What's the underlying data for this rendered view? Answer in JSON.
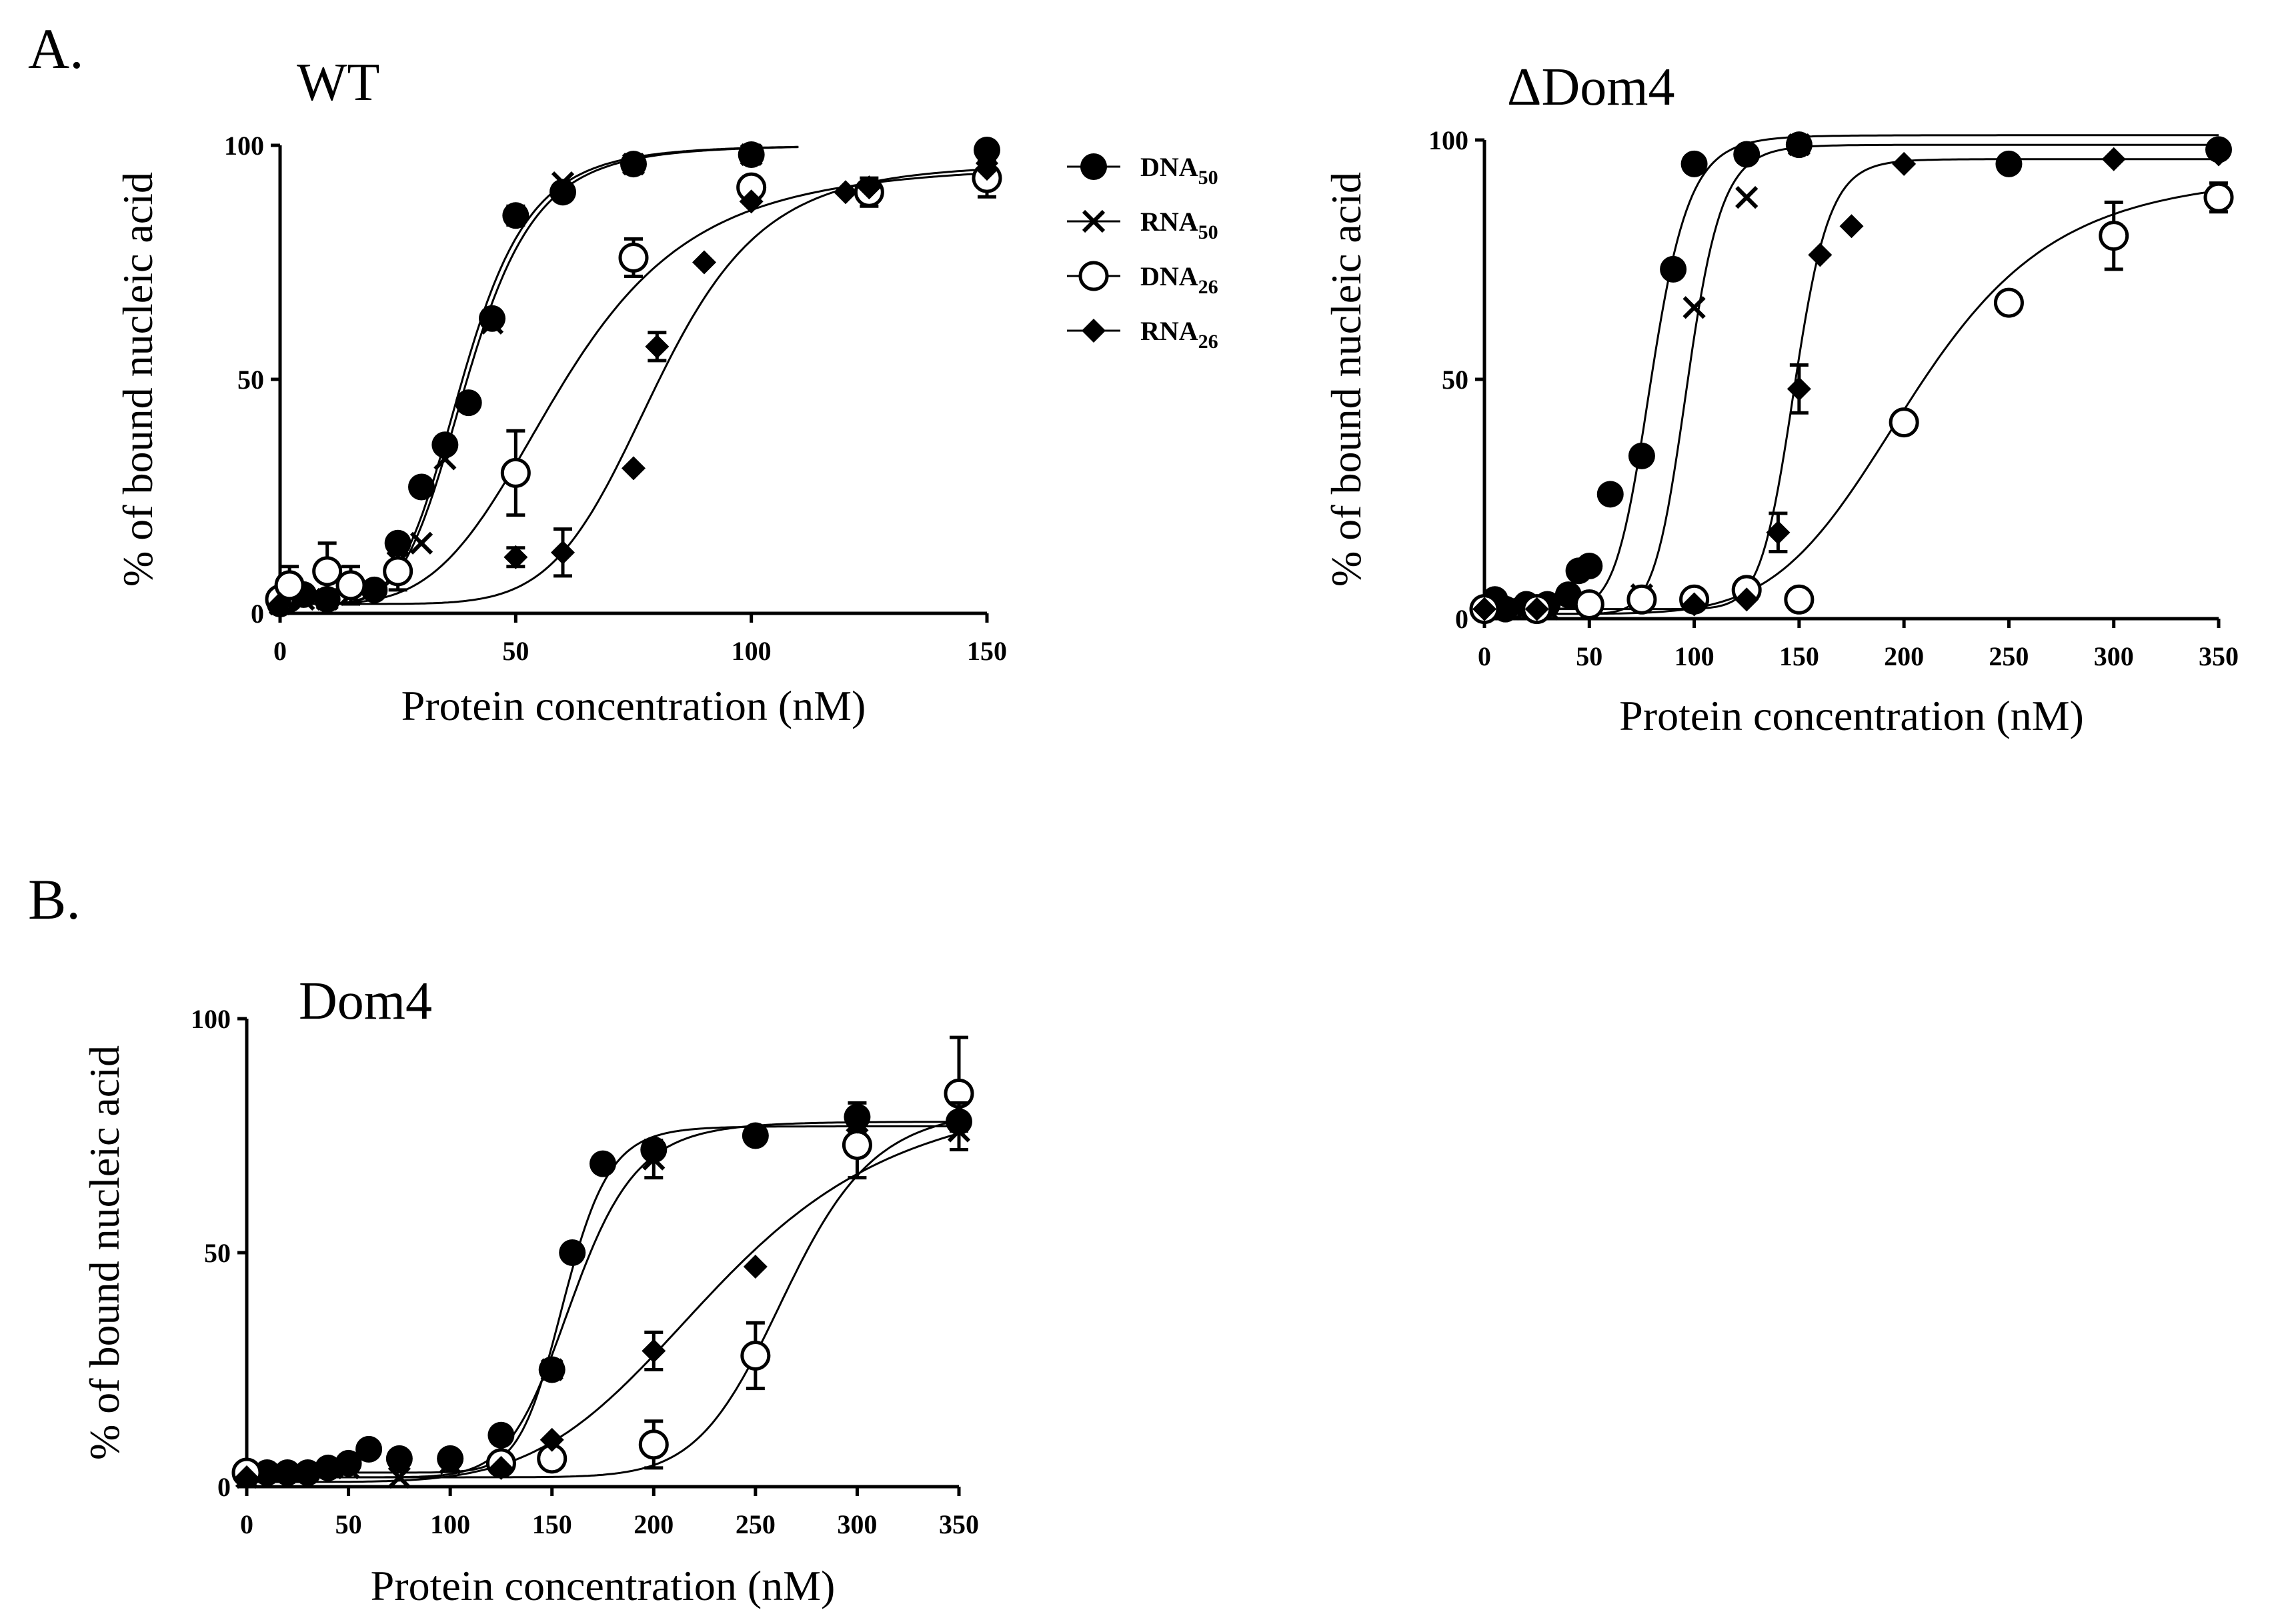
{
  "panel_labels": [
    "A.",
    "B."
  ],
  "legend": {
    "items": [
      {
        "base": "DNA",
        "sub": "50",
        "marker": "filled-circle"
      },
      {
        "base": "RNA",
        "sub": "50",
        "marker": "cross"
      },
      {
        "base": "DNA",
        "sub": "26",
        "marker": "open-circle"
      },
      {
        "base": "RNA",
        "sub": "26",
        "marker": "filled-diamond"
      }
    ]
  },
  "chart_data": [
    {
      "type": "scatter",
      "title": "WT",
      "xlabel": "Protein concentration (nM)",
      "ylabel": "% of bound nucleic acid",
      "xlim": [
        0,
        150
      ],
      "ylim": [
        0,
        100
      ],
      "xticks": [
        0,
        50,
        100,
        150
      ],
      "yticks": [
        0,
        50,
        100
      ],
      "series": [
        {
          "name": "DNA50",
          "marker": "filled-circle",
          "points": [
            [
              0,
              2
            ],
            [
              2,
              3
            ],
            [
              5,
              4
            ],
            [
              10,
              3
            ],
            [
              20,
              5
            ],
            [
              25,
              15
            ],
            [
              30,
              27
            ],
            [
              35,
              36
            ],
            [
              40,
              45
            ],
            [
              45,
              63
            ],
            [
              50,
              85
            ],
            [
              60,
              90
            ],
            [
              75,
              96
            ],
            [
              100,
              98
            ],
            [
              150,
              99
            ]
          ],
          "err": [
            0,
            0,
            0,
            0,
            0,
            0,
            0,
            0,
            0,
            0,
            2,
            0,
            0,
            0,
            0
          ],
          "fit": {
            "top": 100,
            "bottom": 2,
            "ec50": 39,
            "hill": 5.5,
            "xmax": 110
          }
        },
        {
          "name": "RNA50",
          "marker": "cross",
          "points": [
            [
              0,
              2
            ],
            [
              5,
              3
            ],
            [
              10,
              3
            ],
            [
              15,
              4
            ],
            [
              25,
              11
            ],
            [
              30,
              15
            ],
            [
              35,
              33
            ],
            [
              45,
              62
            ],
            [
              60,
              92
            ],
            [
              75,
              96
            ],
            [
              100,
              98
            ],
            [
              150,
              98
            ]
          ],
          "err": [
            0,
            0,
            0,
            0,
            0,
            0,
            0,
            0,
            0,
            0,
            0,
            0
          ],
          "fit": {
            "top": 100,
            "bottom": 2,
            "ec50": 40,
            "hill": 5.5,
            "xmax": 110
          }
        },
        {
          "name": "DNA26",
          "marker": "open-circle",
          "points": [
            [
              0,
              3
            ],
            [
              2,
              6
            ],
            [
              10,
              9
            ],
            [
              15,
              6
            ],
            [
              25,
              9
            ],
            [
              50,
              30
            ],
            [
              75,
              76
            ],
            [
              100,
              91
            ],
            [
              125,
              90
            ],
            [
              150,
              93
            ]
          ],
          "err": [
            0,
            4,
            6,
            4,
            4,
            9,
            4,
            0,
            3,
            4
          ],
          "fit": {
            "top": 96,
            "bottom": 2,
            "ec50": 60,
            "hill": 4.2,
            "xmax": 150
          }
        },
        {
          "name": "RNA26",
          "marker": "filled-diamond",
          "points": [
            [
              0,
              2
            ],
            [
              10,
              3
            ],
            [
              20,
              5
            ],
            [
              50,
              12
            ],
            [
              60,
              13
            ],
            [
              75,
              31
            ],
            [
              80,
              57
            ],
            [
              90,
              75
            ],
            [
              100,
              88
            ],
            [
              120,
              90
            ],
            [
              125,
              91
            ],
            [
              150,
              95
            ]
          ],
          "err": [
            0,
            0,
            0,
            2,
            5,
            0,
            3,
            0,
            0,
            0,
            0,
            0
          ],
          "fit": {
            "top": 96,
            "bottom": 2,
            "ec50": 80,
            "hill": 7,
            "xmax": 150
          }
        }
      ]
    },
    {
      "type": "scatter",
      "title": "ΔDom4",
      "xlabel": "Protein concentration (nM)",
      "ylabel": "% of bound nucleic acid",
      "xlim": [
        0,
        350
      ],
      "ylim": [
        0,
        100
      ],
      "xticks": [
        0,
        50,
        100,
        150,
        200,
        250,
        300,
        350
      ],
      "yticks": [
        0,
        50,
        100
      ],
      "series": [
        {
          "name": "DNA50",
          "marker": "filled-circle",
          "points": [
            [
              0,
              2
            ],
            [
              5,
              4
            ],
            [
              10,
              2
            ],
            [
              20,
              3
            ],
            [
              30,
              3
            ],
            [
              40,
              5
            ],
            [
              45,
              10
            ],
            [
              50,
              11
            ],
            [
              60,
              26
            ],
            [
              75,
              34
            ],
            [
              90,
              73
            ],
            [
              100,
              95
            ],
            [
              125,
              97
            ],
            [
              150,
              99
            ],
            [
              250,
              95
            ],
            [
              350,
              98
            ]
          ],
          "err": [
            0,
            0,
            0,
            0,
            0,
            0,
            0,
            0,
            0,
            0,
            0,
            0,
            0,
            0,
            0,
            0
          ],
          "fit": {
            "top": 101,
            "bottom": 2,
            "ec50": 80,
            "hill": 9,
            "xmax": 350
          }
        },
        {
          "name": "RNA50",
          "marker": "cross",
          "points": [
            [
              0,
              2
            ],
            [
              10,
              2
            ],
            [
              20,
              2
            ],
            [
              30,
              2
            ],
            [
              75,
              5
            ],
            [
              100,
              65
            ],
            [
              125,
              88
            ],
            [
              150,
              99
            ]
          ],
          "err": [
            0,
            0,
            0,
            0,
            0,
            0,
            0,
            0
          ],
          "fit": {
            "top": 99,
            "bottom": 1,
            "ec50": 97,
            "hill": 12,
            "xmax": 350
          }
        },
        {
          "name": "DNA26",
          "marker": "open-circle",
          "points": [
            [
              0,
              2
            ],
            [
              25,
              2
            ],
            [
              50,
              3
            ],
            [
              75,
              4
            ],
            [
              100,
              4
            ],
            [
              125,
              6
            ],
            [
              150,
              4
            ],
            [
              200,
              41
            ],
            [
              250,
              66
            ],
            [
              300,
              80
            ],
            [
              350,
              88
            ]
          ],
          "err": [
            0,
            0,
            0,
            0,
            0,
            0,
            0,
            0,
            0,
            7,
            3
          ],
          "fit": {
            "top": 93,
            "bottom": 1,
            "ec50": 205,
            "hill": 6,
            "xmax": 350
          }
        },
        {
          "name": "RNA26",
          "marker": "filled-diamond",
          "points": [
            [
              0,
              2
            ],
            [
              25,
              2
            ],
            [
              100,
              3
            ],
            [
              125,
              4
            ],
            [
              140,
              18
            ],
            [
              150,
              48
            ],
            [
              160,
              76
            ],
            [
              175,
              82
            ],
            [
              200,
              95
            ],
            [
              300,
              96
            ],
            [
              350,
              97
            ]
          ],
          "err": [
            0,
            0,
            0,
            0,
            4,
            5,
            0,
            0,
            0,
            0,
            0
          ],
          "fit": {
            "top": 96,
            "bottom": 2,
            "ec50": 148,
            "hill": 18,
            "xmax": 350
          }
        }
      ]
    },
    {
      "type": "scatter",
      "title": "Dom4",
      "xlabel": "Protein concentration (nM)",
      "ylabel": "% of bound nucleic acid",
      "xlim": [
        0,
        350
      ],
      "ylim": [
        0,
        100
      ],
      "xticks": [
        0,
        50,
        100,
        150,
        200,
        250,
        300,
        350
      ],
      "yticks": [
        0,
        50,
        100
      ],
      "series": [
        {
          "name": "DNA50",
          "marker": "filled-circle",
          "points": [
            [
              0,
              3
            ],
            [
              10,
              3
            ],
            [
              20,
              3
            ],
            [
              30,
              3
            ],
            [
              40,
              4
            ],
            [
              50,
              5
            ],
            [
              60,
              8
            ],
            [
              75,
              6
            ],
            [
              100,
              6
            ],
            [
              125,
              11
            ],
            [
              150,
              25
            ],
            [
              160,
              50
            ],
            [
              175,
              69
            ],
            [
              200,
              72
            ],
            [
              250,
              75
            ],
            [
              300,
              79
            ],
            [
              350,
              78
            ]
          ],
          "err": [
            0,
            0,
            0,
            0,
            0,
            0,
            0,
            0,
            0,
            0,
            0,
            0,
            0,
            0,
            0,
            3,
            0
          ],
          "fit": {
            "top": 77,
            "bottom": 3,
            "ec50": 156,
            "hill": 14,
            "xmax": 350
          }
        },
        {
          "name": "RNA50",
          "marker": "cross",
          "points": [
            [
              0,
              2
            ],
            [
              25,
              3
            ],
            [
              50,
              4
            ],
            [
              75,
              2
            ],
            [
              100,
              5
            ],
            [
              125,
              5
            ],
            [
              150,
              25
            ],
            [
              200,
              70
            ],
            [
              300,
              78
            ],
            [
              350,
              76
            ]
          ],
          "err": [
            0,
            0,
            0,
            0,
            0,
            0,
            0,
            4,
            0,
            0
          ],
          "fit": {
            "top": 78,
            "bottom": 2,
            "ec50": 160,
            "hill": 10,
            "xmax": 350
          }
        },
        {
          "name": "DNA26",
          "marker": "open-circle",
          "points": [
            [
              0,
              3
            ],
            [
              125,
              5
            ],
            [
              150,
              6
            ],
            [
              200,
              9
            ],
            [
              250,
              28
            ],
            [
              300,
              73
            ],
            [
              350,
              84
            ]
          ],
          "err": [
            0,
            0,
            0,
            5,
            7,
            7,
            12
          ],
          "fit": {
            "top": 81,
            "bottom": 2,
            "ec50": 265,
            "hill": 12,
            "xmax": 350
          }
        },
        {
          "name": "RNA26",
          "marker": "filled-diamond",
          "points": [
            [
              0,
              2
            ],
            [
              125,
              4
            ],
            [
              150,
              10
            ],
            [
              200,
              29
            ],
            [
              250,
              47
            ],
            [
              300,
              78
            ],
            [
              350,
              79
            ]
          ],
          "err": [
            0,
            0,
            0,
            4,
            0,
            0,
            3
          ],
          "fit": {
            "top": 85,
            "bottom": 1,
            "ec50": 232,
            "hill": 5,
            "xmax": 350
          }
        }
      ]
    }
  ]
}
